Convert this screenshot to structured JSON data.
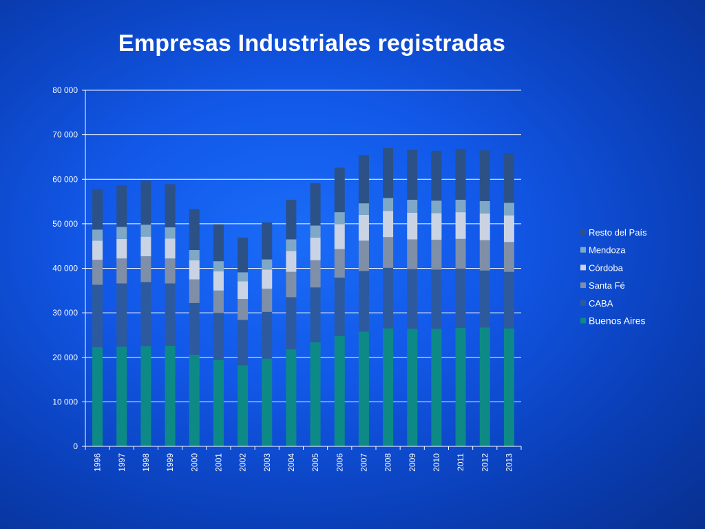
{
  "title": "Empresas Industriales registradas",
  "chart_data": {
    "type": "bar",
    "stacked": true,
    "title": "Empresas Industriales registradas",
    "xlabel": "",
    "ylabel": "",
    "ylim": [
      0,
      80000
    ],
    "yticks": [
      0,
      10000,
      20000,
      30000,
      40000,
      50000,
      60000,
      70000,
      80000
    ],
    "ytick_labels": [
      "0",
      "10 000",
      "20 000",
      "30 000",
      "40 000",
      "50 000",
      "60 000",
      "70 000",
      "80 000"
    ],
    "grid": true,
    "legend_position": "right",
    "categories": [
      "1996",
      "1997",
      "1998",
      "1999",
      "2000",
      "2001",
      "2002",
      "2003",
      "2004",
      "2005",
      "2006",
      "2007",
      "2008",
      "2009",
      "2010",
      "2011",
      "2012",
      "2013"
    ],
    "series": [
      {
        "name": "Buenos Aires",
        "color": "#0e8a86",
        "values": [
          22300,
          22400,
          22500,
          22600,
          20600,
          19400,
          18200,
          19700,
          21800,
          23400,
          24800,
          25800,
          26500,
          26400,
          26400,
          26600,
          26700,
          26500
        ]
      },
      {
        "name": "CABA",
        "color": "#2d5a9e",
        "values": [
          14000,
          14200,
          14400,
          14000,
          11600,
          10600,
          10200,
          10500,
          11700,
          12300,
          13100,
          13600,
          13600,
          13400,
          13300,
          13300,
          12800,
          12700
        ]
      },
      {
        "name": "Santa Fé",
        "color": "#7f8fa8",
        "values": [
          5600,
          5600,
          5800,
          5600,
          5300,
          5000,
          4700,
          5200,
          5700,
          6100,
          6400,
          6800,
          6900,
          6700,
          6700,
          6700,
          6800,
          6700
        ]
      },
      {
        "name": "Córdoba",
        "color": "#c9d3e3",
        "values": [
          4300,
          4400,
          4400,
          4500,
          4300,
          4300,
          4000,
          4300,
          4700,
          5100,
          5600,
          5800,
          5900,
          6000,
          6000,
          6000,
          6000,
          6000
        ]
      },
      {
        "name": "Mendoza",
        "color": "#7ea8c6",
        "values": [
          2500,
          2700,
          2700,
          2500,
          2300,
          2300,
          2000,
          2300,
          2600,
          2700,
          2700,
          2600,
          2900,
          2900,
          2800,
          2800,
          2800,
          2800
        ]
      },
      {
        "name": "Resto del País",
        "color": "#2b5186",
        "values": [
          9100,
          9300,
          9900,
          9700,
          9200,
          8300,
          7800,
          8300,
          8900,
          9500,
          10000,
          10800,
          11200,
          11200,
          11200,
          11400,
          11400,
          11200
        ]
      }
    ],
    "legend_order": [
      "Resto del País",
      "Mendoza",
      "Córdoba",
      "Santa Fé",
      "CABA",
      "Buenos Aires"
    ]
  }
}
